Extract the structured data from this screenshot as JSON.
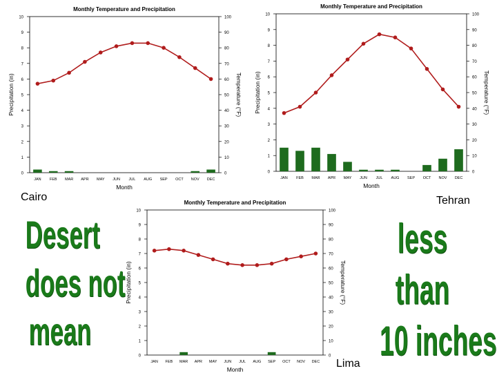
{
  "labels": {
    "cairo": "Cairo",
    "tehran": "Tehran",
    "lima": "Lima"
  },
  "slogan_left": [
    "Desert",
    "does not",
    "mean"
  ],
  "slogan_right": [
    "less",
    "than",
    "10 inches"
  ],
  "colors": {
    "line": "#b01c1c",
    "bar": "#1e6b1e",
    "slogan": "#1a7a1a"
  },
  "chart_data": [
    {
      "type": "bar+line",
      "title": "Monthly Temperature and Precipitation",
      "xlabel": "Month",
      "ylabel_left": "Precipitation (in)",
      "ylabel_right": "Temperature (°F)",
      "categories": [
        "JAN",
        "FEB",
        "MAR",
        "APR",
        "MAY",
        "JUN",
        "JUL",
        "AUG",
        "SEP",
        "OCT",
        "NOV",
        "DEC"
      ],
      "ylim_left": [
        0,
        10
      ],
      "ylim_right": [
        0,
        100
      ],
      "series": [
        {
          "kind": "bar",
          "axis": "left",
          "values": [
            0.2,
            0.1,
            0.1,
            0,
            0,
            0,
            0,
            0,
            0,
            0,
            0.1,
            0.2
          ]
        },
        {
          "kind": "line",
          "axis": "right",
          "values": [
            57,
            59,
            64,
            71,
            77,
            81,
            83,
            83,
            80,
            74,
            67,
            60
          ]
        }
      ]
    },
    {
      "type": "bar+line",
      "title": "Monthly Temperature and Precipitation",
      "xlabel": "Month",
      "ylabel_left": "Precipitation (in)",
      "ylabel_right": "Temperature (°F)",
      "categories": [
        "JAN",
        "FEB",
        "MAR",
        "APR",
        "MAY",
        "JUN",
        "JUL",
        "AUG",
        "SEP",
        "OCT",
        "NOV",
        "DEC"
      ],
      "ylim_left": [
        0,
        10
      ],
      "ylim_right": [
        0,
        100
      ],
      "series": [
        {
          "kind": "bar",
          "axis": "left",
          "values": [
            1.5,
            1.3,
            1.5,
            1.1,
            0.6,
            0.1,
            0.1,
            0.1,
            0,
            0.4,
            0.8,
            1.4
          ]
        },
        {
          "kind": "line",
          "axis": "right",
          "values": [
            37,
            41,
            50,
            61,
            71,
            81,
            87,
            85,
            78,
            65,
            52,
            41
          ]
        }
      ]
    },
    {
      "type": "bar+line",
      "title": "Monthly Temperature and Precipitation",
      "xlabel": "Month",
      "ylabel_left": "Precipitation (in)",
      "ylabel_right": "Temperature (°F)",
      "categories": [
        "JAN",
        "FEB",
        "MAR",
        "APR",
        "MAY",
        "JUN",
        "JUL",
        "AUG",
        "SEP",
        "OCT",
        "NOV",
        "DEC"
      ],
      "ylim_left": [
        0,
        10
      ],
      "ylim_right": [
        0,
        100
      ],
      "series": [
        {
          "kind": "bar",
          "axis": "left",
          "values": [
            0,
            0,
            0.2,
            0,
            0,
            0,
            0,
            0,
            0.2,
            0,
            0,
            0
          ]
        },
        {
          "kind": "line",
          "axis": "right",
          "values": [
            72,
            73,
            72,
            69,
            66,
            63,
            62,
            62,
            63,
            66,
            68,
            70
          ]
        }
      ]
    }
  ]
}
